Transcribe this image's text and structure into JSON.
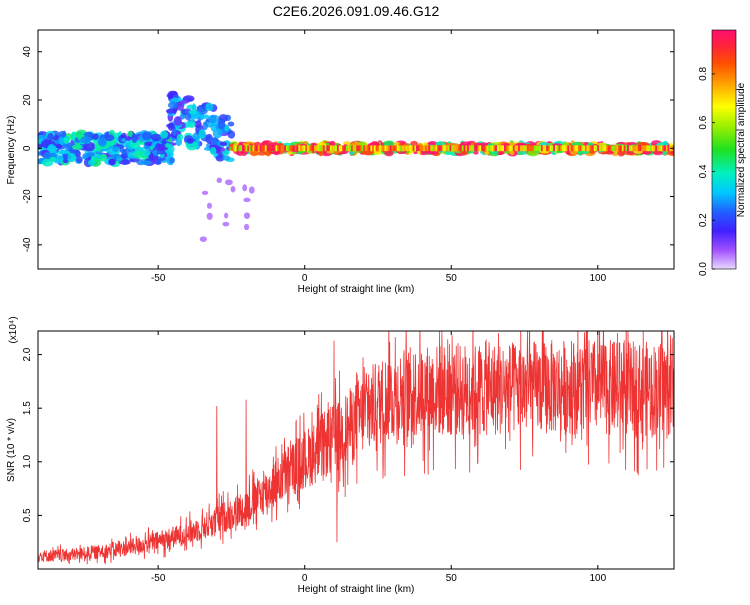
{
  "title": "C2E6.2026.091.09.46.G12",
  "chart_data": [
    {
      "type": "heatmap",
      "xlabel": "Height of straight line (km)",
      "ylabel": "Frequency (Hz)",
      "xlim": [
        -91,
        126
      ],
      "ylim": [
        -50,
        49
      ],
      "x_ticks": [
        -50,
        0,
        50,
        100
      ],
      "y_ticks": [
        -40,
        -20,
        0,
        20,
        40
      ],
      "colorbar": {
        "label": "Normalized spectral amplitude",
        "range": [
          0,
          0.98
        ],
        "ticks": [
          0.0,
          0.2,
          0.4,
          0.6,
          0.8
        ]
      },
      "features": [
        {
          "x_start": -91,
          "x_end": -45,
          "freq_center": 0,
          "freq_halfwidth": 6,
          "amplitude": 0.35
        },
        {
          "x_start": -46,
          "x_end": -25,
          "freq_center": 8,
          "freq_halfwidth": 10,
          "amplitude": 0.3
        },
        {
          "x_start": -25,
          "x_end": 126,
          "freq_center": 0,
          "freq_halfwidth": 2,
          "amplitude": 0.9
        }
      ]
    },
    {
      "type": "line",
      "xlabel": "Height of straight line (km)",
      "ylabel": "SNR (10 * v/v)",
      "y_scale_label": "(x10⁴)",
      "xlim": [
        -91,
        126
      ],
      "ylim": [
        0,
        2.22
      ],
      "x_ticks": [
        -50,
        0,
        50,
        100
      ],
      "y_ticks": [
        0.5,
        1.0,
        1.5,
        2.0
      ],
      "series": [
        {
          "color": "#ee3333",
          "trend_x": [
            -91,
            -80,
            -70,
            -60,
            -50,
            -40,
            -30,
            -20,
            -15,
            -10,
            -5,
            0,
            5,
            10,
            15,
            20,
            25,
            30,
            40,
            50,
            60,
            70,
            80,
            90,
            100,
            110,
            126
          ],
          "trend_y": [
            0.12,
            0.13,
            0.16,
            0.2,
            0.26,
            0.33,
            0.45,
            0.58,
            0.68,
            0.8,
            0.92,
            1.02,
            1.12,
            1.22,
            1.32,
            1.45,
            1.55,
            1.62,
            1.66,
            1.67,
            1.68,
            1.68,
            1.69,
            1.7,
            1.7,
            1.68,
            1.68
          ],
          "spikes": [
            {
              "x": 10,
              "y": 2.13
            },
            {
              "x": 11,
              "y": 0.25
            },
            {
              "x": 29,
              "y": 2.12
            },
            {
              "x": 46,
              "y": 2.22
            },
            {
              "x": 76,
              "y": 2.22
            },
            {
              "x": -30,
              "y": 1.52
            },
            {
              "x": -20,
              "y": 1.58
            }
          ]
        }
      ]
    }
  ]
}
